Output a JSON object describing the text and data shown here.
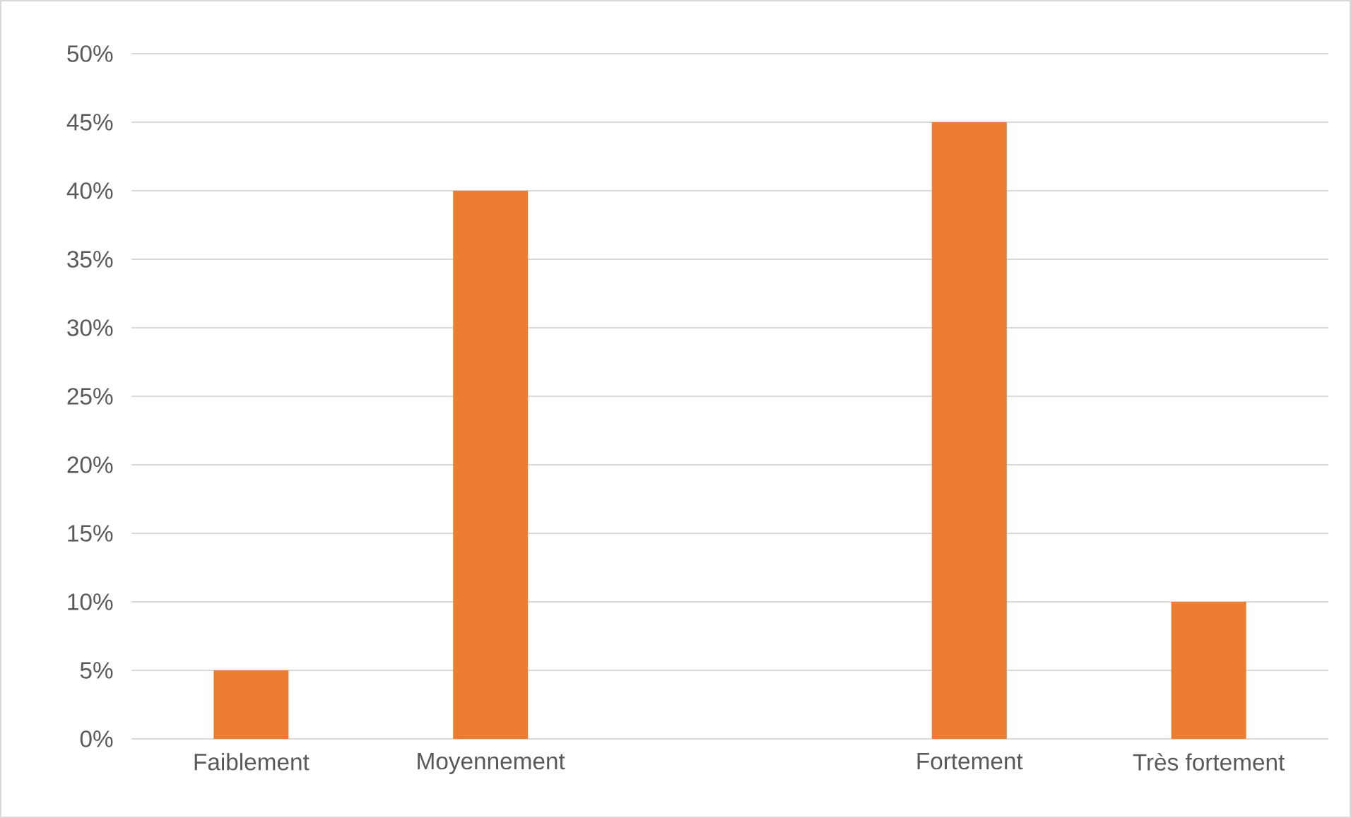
{
  "chart_data": {
    "type": "bar",
    "categories": [
      "Faiblement",
      "Moyennement",
      null,
      "Fortement",
      "Très fortement"
    ],
    "values": [
      5,
      40,
      null,
      45,
      10
    ],
    "color": "#ed7d31",
    "ylim": [
      0,
      50
    ],
    "yticks": [
      {
        "value": 0,
        "label": "0%"
      },
      {
        "value": 5,
        "label": "5%"
      },
      {
        "value": 10,
        "label": "10%"
      },
      {
        "value": 15,
        "label": "15%"
      },
      {
        "value": 20,
        "label": "20%"
      },
      {
        "value": 25,
        "label": "25%"
      },
      {
        "value": 30,
        "label": "30%"
      },
      {
        "value": 35,
        "label": "35%"
      },
      {
        "value": 40,
        "label": "40%"
      },
      {
        "value": 45,
        "label": "45%"
      },
      {
        "value": 50,
        "label": "50%"
      }
    ],
    "grid": "y"
  }
}
